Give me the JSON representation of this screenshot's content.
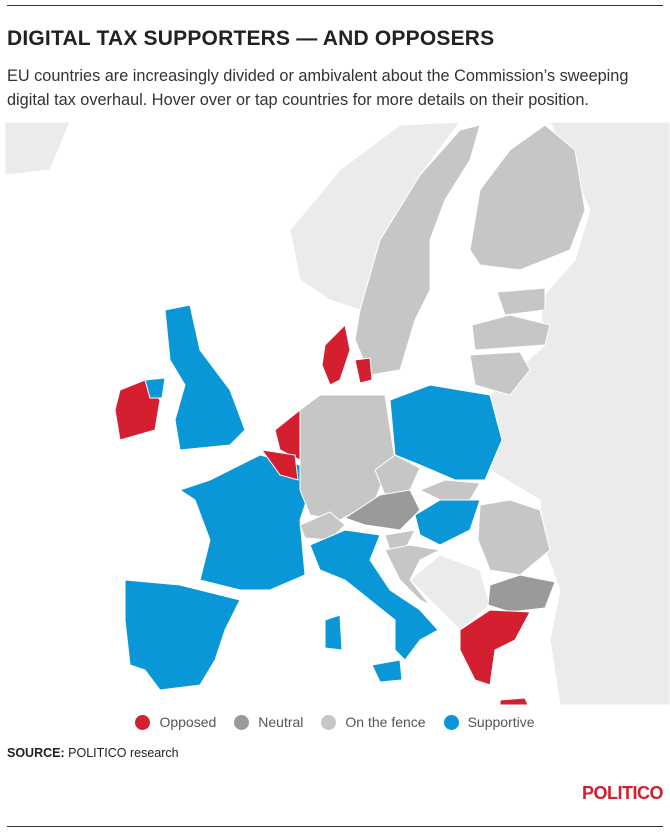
{
  "header": {
    "title": "DIGITAL TAX SUPPORTERS — AND OPPOSERS",
    "subtitle": "EU countries are increasingly divided or ambivalent about the Commission’s sweeping digital tax overhaul. Hover over or tap countries for more details on their position."
  },
  "legend": [
    {
      "label": "Opposed",
      "color": "#d31f2f"
    },
    {
      "label": "Neutral",
      "color": "#9a9a9a"
    },
    {
      "label": "On the fence",
      "color": "#c6c6c6"
    },
    {
      "label": "Supportive",
      "color": "#0a97d8"
    }
  ],
  "footer": {
    "source_label": "SOURCE:",
    "source": "POLITICO research",
    "logo": "POLITICO"
  }
}
